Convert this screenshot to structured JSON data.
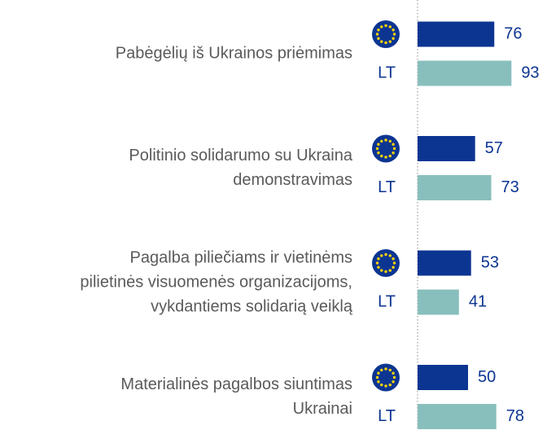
{
  "chart_data": {
    "type": "bar",
    "categories": [
      [
        "Pabėgėlių iš Ukrainos priėmimas"
      ],
      [
        "Politinio solidarumo su Ukraina",
        "demonstravimas"
      ],
      [
        "Pagalba piliečiams ir vietinėms",
        "pilietinės visuomenės organizacijoms,",
        "vykdantiems solidarią veiklą"
      ],
      [
        "Materialinės pagalbos siuntimas",
        "Ukrainai"
      ]
    ],
    "series": [
      {
        "color": "#0c3592",
        "values": [
          76,
          57,
          53,
          50
        ]
      },
      {
        "name": "LT",
        "color": "#88bfbd",
        "values": [
          93,
          73,
          41,
          78
        ]
      }
    ]
  }
}
